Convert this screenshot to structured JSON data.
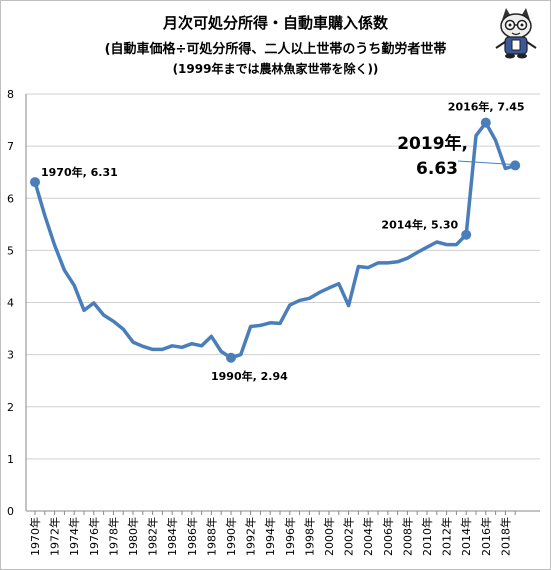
{
  "title": "月次可処分所得・自動車購入係数",
  "subtitle_line1": "(自動車価格÷可処分所得、二人以上世帯のうち勤労者世帯",
  "subtitle_line2": "(1999年までは農林魚家世帯を除く))",
  "colors": {
    "line": "#4a7ebb",
    "grid": "#d0d0d0",
    "axis": "#888888",
    "text": "#000000"
  },
  "mascot_icon": "bespectacled-cat-mascot-icon",
  "chart_data": {
    "type": "line",
    "title": "月次可処分所得・自動車購入係数",
    "xlabel": "",
    "ylabel": "",
    "ylim": [
      0,
      8
    ],
    "yticks": [
      0,
      1,
      2,
      3,
      4,
      5,
      6,
      7,
      8
    ],
    "grid": "horizontal",
    "legend": "none",
    "x": [
      1970,
      1971,
      1972,
      1973,
      1974,
      1975,
      1976,
      1977,
      1978,
      1979,
      1980,
      1981,
      1982,
      1983,
      1984,
      1985,
      1986,
      1987,
      1988,
      1989,
      1990,
      1991,
      1992,
      1993,
      1994,
      1995,
      1996,
      1997,
      1998,
      1999,
      2000,
      2001,
      2002,
      2003,
      2004,
      2005,
      2006,
      2007,
      2008,
      2009,
      2010,
      2011,
      2012,
      2013,
      2014,
      2015,
      2016,
      2017,
      2018,
      2019
    ],
    "x_tick_labels": [
      "1970年",
      "1972年",
      "1974年",
      "1976年",
      "1978年",
      "1980年",
      "1982年",
      "1984年",
      "1986年",
      "1988年",
      "1990年",
      "1992年",
      "1994年",
      "1996年",
      "1998年",
      "2000年",
      "2002年",
      "2004年",
      "2006年",
      "2008年",
      "2010年",
      "2012年",
      "2014年",
      "2016年",
      "2018年"
    ],
    "series": [
      {
        "values": [
          6.31,
          5.67,
          5.1,
          4.62,
          4.33,
          3.85,
          3.99,
          3.76,
          3.64,
          3.49,
          3.24,
          3.16,
          3.1,
          3.1,
          3.17,
          3.14,
          3.21,
          3.17,
          3.35,
          3.06,
          2.94,
          3.0,
          3.54,
          3.56,
          3.61,
          3.6,
          3.95,
          4.04,
          4.08,
          4.19,
          4.28,
          4.36,
          3.94,
          4.69,
          4.67,
          4.76,
          4.76,
          4.78,
          4.85,
          4.96,
          5.06,
          5.16,
          5.11,
          5.11,
          5.3,
          7.2,
          7.45,
          7.11,
          6.57,
          6.63
        ]
      }
    ],
    "annotations": [
      {
        "year": 1970,
        "value": 6.31,
        "text": "1970年, 6.31"
      },
      {
        "year": 1990,
        "value": 2.94,
        "text": "1990年, 2.94"
      },
      {
        "year": 2014,
        "value": 5.3,
        "text": "2014年, 5.30"
      },
      {
        "year": 2016,
        "value": 7.45,
        "text": "2016年, 7.45"
      }
    ],
    "callout": {
      "year": 2019,
      "value": 6.63,
      "line1": "2019年,",
      "line2": "6.63"
    }
  }
}
